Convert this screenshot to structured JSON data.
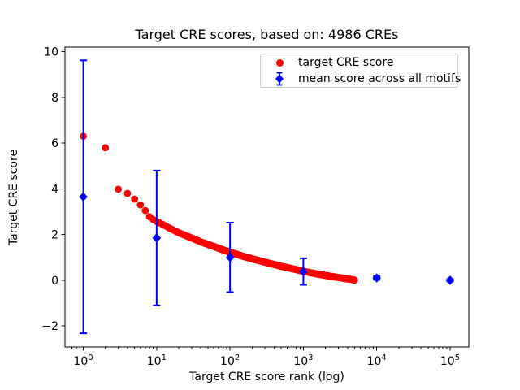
{
  "figure": {
    "background": "#ffffff",
    "text_color": "#000000",
    "frame_color": "#000000"
  },
  "chart_data": {
    "type": "scatter",
    "title": "Target CRE scores, based on: 4986 CREs",
    "xlabel": "Target CRE score rank (log)",
    "ylabel": "Target CRE score",
    "x_scale": "log",
    "n_cres": 4986,
    "xlim_log10": [
      -0.25,
      5.255
    ],
    "ylim": [
      -2.92,
      10.2
    ],
    "x_tick_exponents": [
      0,
      1,
      2,
      3,
      4,
      5
    ],
    "y_ticks": [
      -2,
      0,
      2,
      4,
      6,
      8,
      10
    ],
    "grid": false,
    "legend_position": "upper right",
    "series": [
      {
        "name": "target CRE score",
        "marker": "circle",
        "color": "#ff0000",
        "rank_range": [
          1,
          4986
        ],
        "anchors": [
          [
            1,
            6.3
          ],
          [
            2,
            5.8
          ],
          [
            3,
            3.98
          ],
          [
            4,
            3.8
          ],
          [
            5,
            3.55
          ],
          [
            6,
            3.3
          ],
          [
            7,
            3.05
          ],
          [
            8,
            2.78
          ],
          [
            9,
            2.65
          ],
          [
            10,
            2.57
          ],
          [
            12,
            2.45
          ],
          [
            15,
            2.28
          ],
          [
            20,
            2.08
          ],
          [
            30,
            1.85
          ],
          [
            40,
            1.68
          ],
          [
            60,
            1.48
          ],
          [
            80,
            1.33
          ],
          [
            100,
            1.23
          ],
          [
            150,
            1.05
          ],
          [
            200,
            0.94
          ],
          [
            300,
            0.79
          ],
          [
            500,
            0.61
          ],
          [
            700,
            0.51
          ],
          [
            1000,
            0.39
          ],
          [
            1500,
            0.28
          ],
          [
            2000,
            0.21
          ],
          [
            3000,
            0.12
          ],
          [
            4000,
            0.06
          ],
          [
            4986,
            0.01
          ]
        ]
      },
      {
        "name": "mean score across all motifs",
        "marker": "diamond",
        "color": "#0000ff",
        "points": [
          {
            "x": 1,
            "y": 3.65,
            "err": 5.97
          },
          {
            "x": 10,
            "y": 1.85,
            "err": 2.95
          },
          {
            "x": 100,
            "y": 1.0,
            "err": 1.52
          },
          {
            "x": 1000,
            "y": 0.38,
            "err": 0.58
          },
          {
            "x": 10000,
            "y": 0.1,
            "err": 0.08
          },
          {
            "x": 100000,
            "y": 0.0,
            "err": 0.05
          }
        ]
      }
    ]
  }
}
